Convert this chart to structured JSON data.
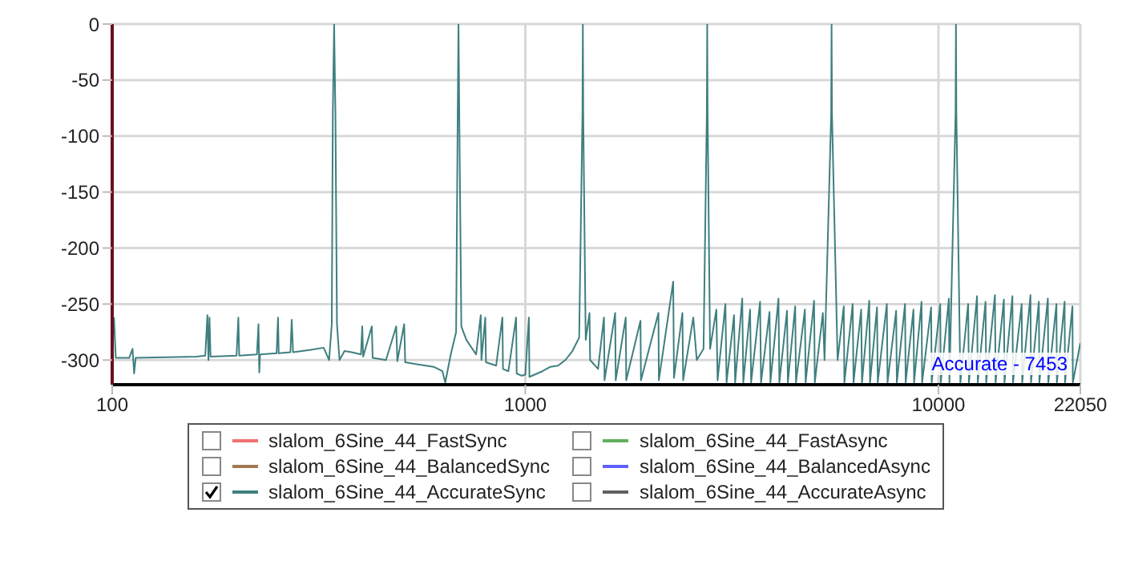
{
  "chart_data": {
    "type": "line",
    "series": [
      {
        "name": "slalom_6Sine_44_FastSync",
        "color": "#f07070"
      },
      {
        "name": "slalom_6Sine_44_BalancedSync",
        "color": "#a07850"
      },
      {
        "name": "slalom_6Sine_44_AccurateSync",
        "color": "#3f7f7f",
        "x": [
          101,
          102,
          110,
          112,
          113,
          114,
          160,
          168,
          170,
          171,
          172,
          173,
          200,
          202,
          203,
          224,
          226,
          227,
          228,
          250,
          252,
          253,
          270,
          272,
          274,
          300,
          325,
          335,
          340,
          342,
          344.5,
          347,
          350,
          355,
          365,
          380,
          400,
          403,
          405,
          425,
          427,
          460,
          487,
          490,
          509,
          512,
          550,
          600,
          630,
          640,
          660,
          680,
          686,
          689,
          692,
          700,
          720,
          760,
          780,
          783,
          800,
          803,
          850,
          880,
          883,
          910,
          950,
          953,
          980,
          1000,
          1020,
          1023,
          1100,
          1150,
          1200,
          1250,
          1300,
          1350,
          1375,
          1378,
          1381,
          1400,
          1430,
          1435,
          1500,
          1550,
          1555,
          1650,
          1655,
          1750,
          1755,
          1900,
          1905,
          2100,
          2105,
          2280,
          2290,
          2400,
          2410,
          2550,
          2600,
          2700,
          2750,
          2756,
          2762,
          2800,
          2900,
          2920,
          3050,
          3070,
          3200,
          3220,
          3350,
          3370,
          3500,
          3520,
          3700,
          3720,
          3900,
          3920,
          4100,
          4120,
          4300,
          4320,
          4500,
          4520,
          4750,
          4770,
          5000,
          5020,
          5250,
          5300,
          5500,
          5512,
          5524,
          5700,
          5900,
          5920,
          6200,
          6230,
          6500,
          6530,
          6800,
          6830,
          7100,
          7130,
          7500,
          7530,
          7900,
          7930,
          8300,
          8330,
          8700,
          8730,
          9100,
          9130,
          9600,
          9630,
          10100,
          10130,
          10600,
          10630,
          11000,
          11025,
          11050,
          11300,
          11800,
          11850,
          12400,
          12450,
          13000,
          13050,
          13700,
          13750,
          14400,
          14450,
          15100,
          15150,
          15900,
          15950,
          16700,
          16750,
          17500,
          17550,
          18400,
          18450,
          19300,
          19350,
          20200,
          20250,
          21100,
          21150,
          22050
        ],
        "values": [
          -262,
          -298,
          -298,
          -290,
          -312,
          -298,
          -297,
          -296,
          -260,
          -300,
          -262,
          -297,
          -296,
          -262,
          -296,
          -295,
          -268,
          -311,
          -295,
          -294,
          -262,
          -294,
          -293,
          -264,
          -293,
          -291,
          -289,
          -300,
          -268,
          -80,
          0,
          -80,
          -268,
          -300,
          -292,
          -293,
          -295,
          -270,
          -297,
          -270,
          -298,
          -300,
          -270,
          -301,
          -268,
          -302,
          -304,
          -306,
          -310,
          -320,
          -295,
          -275,
          -80,
          0,
          -80,
          -270,
          -282,
          -295,
          -260,
          -300,
          -262,
          -302,
          -305,
          -262,
          -308,
          -310,
          -262,
          -312,
          -314,
          -313,
          -262,
          -315,
          -310,
          -306,
          -305,
          -300,
          -292,
          -280,
          -80,
          0,
          -80,
          -282,
          -258,
          -300,
          -308,
          -262,
          -318,
          -258,
          -318,
          -262,
          -318,
          -265,
          -318,
          -258,
          -318,
          -230,
          -316,
          -258,
          -318,
          -262,
          -300,
          -290,
          -80,
          0,
          -80,
          -290,
          -255,
          -318,
          -250,
          -320,
          -260,
          -320,
          -245,
          -320,
          -255,
          -320,
          -248,
          -320,
          -257,
          -320,
          -245,
          -320,
          -256,
          -320,
          -252,
          -320,
          -255,
          -320,
          -247,
          -320,
          -258,
          -300,
          -80,
          0,
          -80,
          -300,
          -252,
          -320,
          -250,
          -320,
          -255,
          -320,
          -247,
          -320,
          -253,
          -320,
          -250,
          -320,
          -256,
          -320,
          -250,
          -320,
          -255,
          -320,
          -248,
          -320,
          -253,
          -320,
          -250,
          -320,
          -245,
          -320,
          -80,
          0,
          -80,
          -320,
          -250,
          -320,
          -243,
          -320,
          -248,
          -320,
          -242,
          -320,
          -246,
          -320,
          -243,
          -320,
          -250,
          -320,
          -242,
          -320,
          -248,
          -320,
          -245,
          -320,
          -250,
          -320,
          -248,
          -320,
          -252,
          -320,
          -285
        ]
      },
      {
        "name": "slalom_6Sine_44_FastAsync",
        "color": "#60b060"
      },
      {
        "name": "slalom_6Sine_44_BalancedAsync",
        "color": "#6060ff"
      },
      {
        "name": "slalom_6Sine_44_AccurateAsync",
        "color": "#606060"
      }
    ],
    "log": "x",
    "xlim": [
      100,
      22050
    ],
    "xticks": [
      100,
      1000,
      10000,
      22050
    ],
    "ylim": [
      -322,
      0
    ],
    "yticks": [
      0,
      -50,
      -100,
      -150,
      -200,
      -250,
      -300
    ],
    "grid": true,
    "legend": "bottom",
    "annotations": [
      "Accurate - 7453"
    ]
  }
}
